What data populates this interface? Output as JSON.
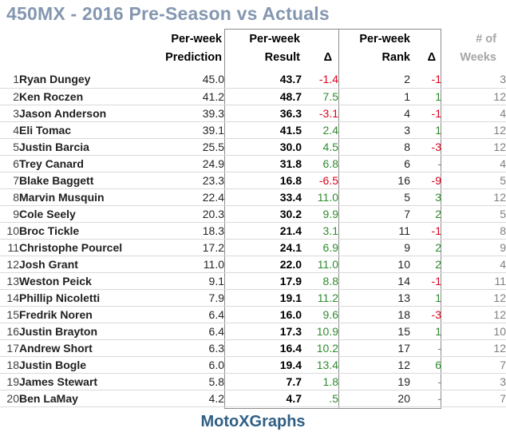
{
  "title": "450MX - 2016 Pre-Season vs Actuals",
  "headers": {
    "prediction": [
      "Per-week",
      "Prediction"
    ],
    "result": [
      "Per-week",
      "Result"
    ],
    "result_delta": "Δ",
    "rank": [
      "Per-week",
      "Rank"
    ],
    "rank_delta": "Δ",
    "weeks": [
      "# of",
      "Weeks"
    ]
  },
  "rows": [
    {
      "n": "1",
      "name": "Ryan Dungey",
      "pred": "45.0",
      "res": "43.7",
      "d": "-1.4",
      "rank": "2",
      "rd": "-1",
      "weeks": "3"
    },
    {
      "n": "2",
      "name": "Ken Roczen",
      "pred": "41.2",
      "res": "48.7",
      "d": "7.5",
      "rank": "1",
      "rd": "1",
      "weeks": "12"
    },
    {
      "n": "3",
      "name": "Jason Anderson",
      "pred": "39.3",
      "res": "36.3",
      "d": "-3.1",
      "rank": "4",
      "rd": "-1",
      "weeks": "4"
    },
    {
      "n": "4",
      "name": "Eli Tomac",
      "pred": "39.1",
      "res": "41.5",
      "d": "2.4",
      "rank": "3",
      "rd": "1",
      "weeks": "12"
    },
    {
      "n": "5",
      "name": "Justin Barcia",
      "pred": "25.5",
      "res": "30.0",
      "d": "4.5",
      "rank": "8",
      "rd": "-3",
      "weeks": "12"
    },
    {
      "n": "6",
      "name": "Trey Canard",
      "pred": "24.9",
      "res": "31.8",
      "d": "6.8",
      "rank": "6",
      "rd": "-",
      "weeks": "4"
    },
    {
      "n": "7",
      "name": "Blake Baggett",
      "pred": "23.3",
      "res": "16.8",
      "d": "-6.5",
      "rank": "16",
      "rd": "-9",
      "weeks": "5"
    },
    {
      "n": "8",
      "name": "Marvin Musquin",
      "pred": "22.4",
      "res": "33.4",
      "d": "11.0",
      "rank": "5",
      "rd": "3",
      "weeks": "12"
    },
    {
      "n": "9",
      "name": "Cole Seely",
      "pred": "20.3",
      "res": "30.2",
      "d": "9.9",
      "rank": "7",
      "rd": "2",
      "weeks": "5"
    },
    {
      "n": "10",
      "name": "Broc Tickle",
      "pred": "18.3",
      "res": "21.4",
      "d": "3.1",
      "rank": "11",
      "rd": "-1",
      "weeks": "8"
    },
    {
      "n": "11",
      "name": "Christophe Pourcel",
      "pred": "17.2",
      "res": "24.1",
      "d": "6.9",
      "rank": "9",
      "rd": "2",
      "weeks": "9"
    },
    {
      "n": "12",
      "name": "Josh Grant",
      "pred": "11.0",
      "res": "22.0",
      "d": "11.0",
      "rank": "10",
      "rd": "2",
      "weeks": "4"
    },
    {
      "n": "13",
      "name": "Weston Peick",
      "pred": "9.1",
      "res": "17.9",
      "d": "8.8",
      "rank": "14",
      "rd": "-1",
      "weeks": "11"
    },
    {
      "n": "14",
      "name": "Phillip Nicoletti",
      "pred": "7.9",
      "res": "19.1",
      "d": "11.2",
      "rank": "13",
      "rd": "1",
      "weeks": "12"
    },
    {
      "n": "15",
      "name": "Fredrik Noren",
      "pred": "6.4",
      "res": "16.0",
      "d": "9.6",
      "rank": "18",
      "rd": "-3",
      "weeks": "12"
    },
    {
      "n": "16",
      "name": "Justin Brayton",
      "pred": "6.4",
      "res": "17.3",
      "d": "10.9",
      "rank": "15",
      "rd": "1",
      "weeks": "10"
    },
    {
      "n": "17",
      "name": "Andrew Short",
      "pred": "6.3",
      "res": "16.4",
      "d": "10.2",
      "rank": "17",
      "rd": "-",
      "weeks": "12"
    },
    {
      "n": "18",
      "name": "Justin Bogle",
      "pred": "6.0",
      "res": "19.4",
      "d": "13.4",
      "rank": "12",
      "rd": "6",
      "weeks": "7"
    },
    {
      "n": "19",
      "name": "James Stewart",
      "pred": "5.8",
      "res": "7.7",
      "d": "1.8",
      "rank": "19",
      "rd": "-",
      "weeks": "3"
    },
    {
      "n": "20",
      "name": "Ben LaMay",
      "pred": "4.2",
      "res": "4.7",
      "d": ".5",
      "rank": "20",
      "rd": "-",
      "weeks": "7"
    }
  ],
  "colors": {
    "title": "#8497b0",
    "negative": "#e0001b",
    "positive": "#2e8b2e",
    "neutral": "#808080",
    "footer": "#2f5f84"
  },
  "footer": "MotoXGraphs"
}
